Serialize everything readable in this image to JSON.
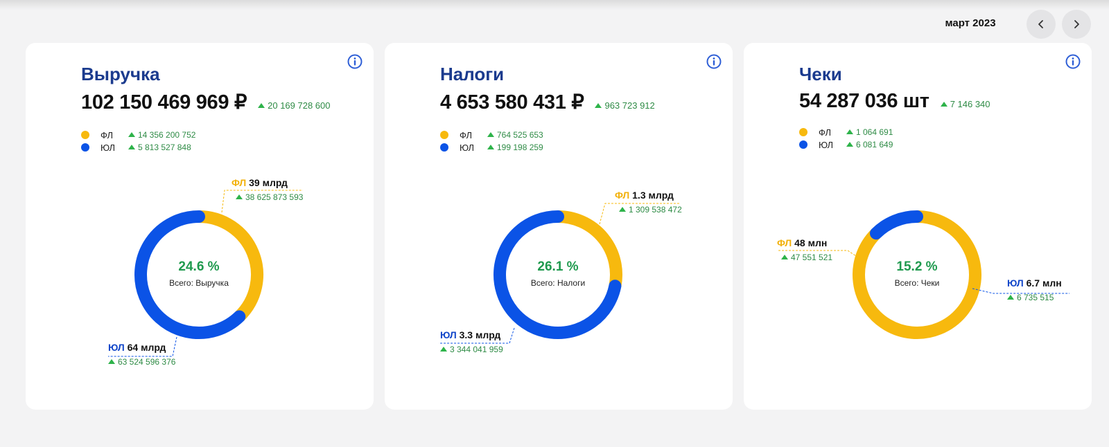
{
  "header": {
    "period": "март 2023"
  },
  "colors": {
    "fl": "#f7b90e",
    "ul": "#0b53e6",
    "positive": "#2e8b45",
    "title": "#1b3b8e"
  },
  "cards": [
    {
      "title": "Выручка",
      "total": "102 150 469 969 ₽",
      "total_delta": "20 169 728 600",
      "legend": [
        {
          "label": "ФЛ",
          "delta": "14 356 200 752"
        },
        {
          "label": "ЮЛ",
          "delta": "5 813 527 848"
        }
      ],
      "center_pct": "24.6 %",
      "center_label": "Всего: Выручка",
      "fl_share": 0.378,
      "fl_callout": {
        "name": "ФЛ",
        "amount": "39 млрд",
        "delta": "38 625 873 593"
      },
      "ul_callout": {
        "name": "ЮЛ",
        "amount": "64 млрд",
        "delta": "63 524 596 376"
      }
    },
    {
      "title": "Налоги",
      "total": "4 653 580 431 ₽",
      "total_delta": "963 723 912",
      "legend": [
        {
          "label": "ФЛ",
          "delta": "764 525 653"
        },
        {
          "label": "ЮЛ",
          "delta": "199 198 259"
        }
      ],
      "center_pct": "26.1 %",
      "center_label": "Всего: Налоги",
      "fl_share": 0.281,
      "fl_callout": {
        "name": "ФЛ",
        "amount": "1.3 млрд",
        "delta": "1 309 538 472"
      },
      "ul_callout": {
        "name": "ЮЛ",
        "amount": "3.3 млрд",
        "delta": "3 344 041 959"
      }
    },
    {
      "title": "Чеки",
      "total": "54 287 036 шт",
      "total_delta": "7 146 340",
      "legend": [
        {
          "label": "ФЛ",
          "delta": "1 064 691"
        },
        {
          "label": "ЮЛ",
          "delta": "6 081 649"
        }
      ],
      "center_pct": "15.2 %",
      "center_label": "Всего: Чеки",
      "fl_share": 0.876,
      "fl_callout": {
        "name": "ФЛ",
        "amount": "48 млн",
        "delta": "47 551 521"
      },
      "ul_callout": {
        "name": "ЮЛ",
        "amount": "6.7 млн",
        "delta": "6 735 515"
      }
    }
  ]
}
